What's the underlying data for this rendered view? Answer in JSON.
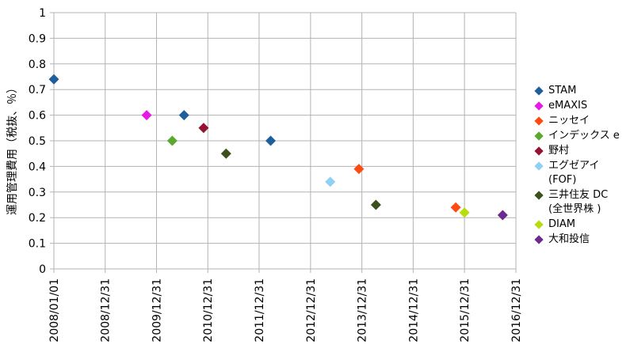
{
  "chart_data": {
    "type": "scatter",
    "ylabel": "運用管理費用（税抜、％）",
    "ylim": [
      0,
      1
    ],
    "yticks": [
      "0",
      "0.1",
      "0.2",
      "0.3",
      "0.4",
      "0.5",
      "0.6",
      "0.7",
      "0.8",
      "0.9",
      "1"
    ],
    "xticks": [
      "2008/01/01",
      "2008/12/31",
      "2009/12/31",
      "2010/12/31",
      "2011/12/31",
      "2012/12/31",
      "2013/12/31",
      "2014/12/31",
      "2015/12/31",
      "2016/12/31"
    ],
    "grid": true,
    "legend_position": "right",
    "series": [
      {
        "name": "STAM",
        "color": "#1f5e9c",
        "points": [
          {
            "x": "2008/01/01",
            "y": 0.74
          },
          {
            "x": "2010/07/15",
            "y": 0.6
          },
          {
            "x": "2012/03/22",
            "y": 0.5
          }
        ]
      },
      {
        "name": "eMAXIS",
        "color": "#e619e6",
        "points": [
          {
            "x": "2009/10/22",
            "y": 0.6
          }
        ]
      },
      {
        "name": "ニッセイ",
        "color": "#ff4a12",
        "points": [
          {
            "x": "2013/12/10",
            "y": 0.39
          },
          {
            "x": "2015/10/30",
            "y": 0.24
          }
        ]
      },
      {
        "name": "インデックス e",
        "color": "#5aa82c",
        "points": [
          {
            "x": "2010/04/22",
            "y": 0.5
          }
        ]
      },
      {
        "name": "野村",
        "color": "#941434",
        "points": [
          {
            "x": "2010/12/01",
            "y": 0.55
          }
        ]
      },
      {
        "name": "エグゼアイ\n(FOF)",
        "color": "#8fd1f2",
        "points": [
          {
            "x": "2013/05/20",
            "y": 0.34
          }
        ]
      },
      {
        "name": "三井住友 DC\n(全世界株 )",
        "color": "#3c501c",
        "points": [
          {
            "x": "2011/05/10",
            "y": 0.45
          },
          {
            "x": "2014/04/10",
            "y": 0.25
          }
        ]
      },
      {
        "name": "DIAM",
        "color": "#b7dd0f",
        "points": [
          {
            "x": "2015/12/31",
            "y": 0.22
          }
        ]
      },
      {
        "name": "大和投信",
        "color": "#6a2b8c",
        "points": [
          {
            "x": "2016/09/28",
            "y": 0.21
          }
        ]
      }
    ]
  }
}
